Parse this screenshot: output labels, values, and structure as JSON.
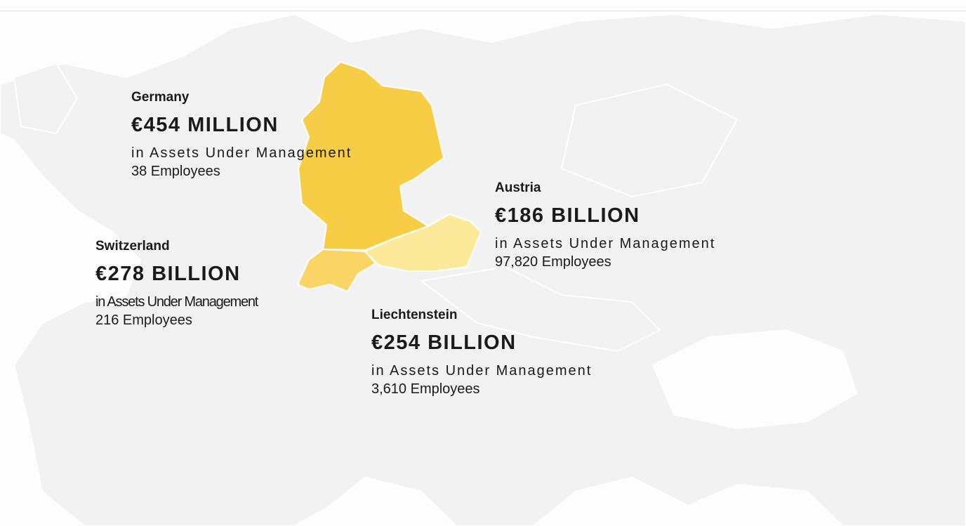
{
  "regions": [
    {
      "name": "Germany",
      "amount": "€454 MILLION",
      "description": "in Assets Under Management",
      "employees": "38 Employees"
    },
    {
      "name": "Austria",
      "amount": "€186 BILLION",
      "description": "in Assets Under Management",
      "employees": "97,820 Employees"
    },
    {
      "name": "Switzerland",
      "amount": "€278 BILLION",
      "description": "in Assets Under Management",
      "employees": "216 Employees"
    },
    {
      "name": "Liechtenstein",
      "amount": "€254 BILLION",
      "description": "in Assets Under Management",
      "employees": "3,610 Employees"
    }
  ]
}
